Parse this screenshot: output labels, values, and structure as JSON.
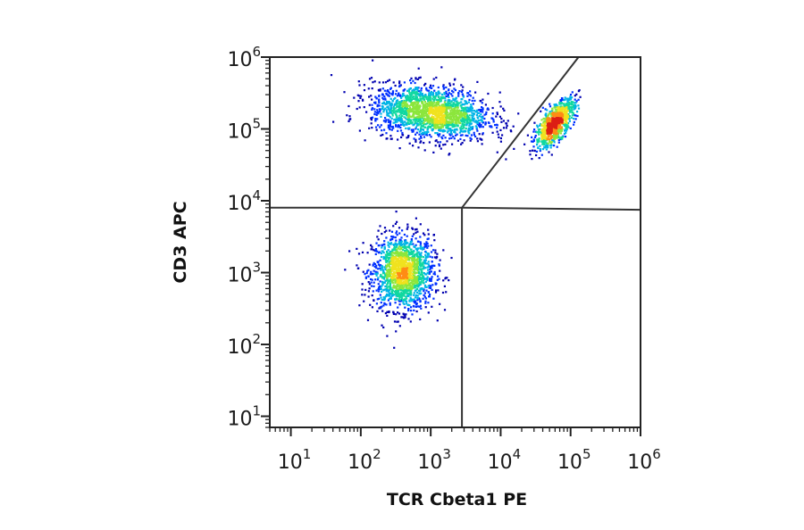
{
  "chart_data": {
    "type": "scatter",
    "style": "flow-cytometry density dot plot (pseudocolor)",
    "xlabel": "TCR Cbeta1 PE",
    "ylabel": "CD3 APC",
    "x_scale": "log",
    "y_scale": "log",
    "xlim": [
      5,
      1000000
    ],
    "ylim": [
      7,
      1000000
    ],
    "x_ticks": [
      {
        "value": 10,
        "base": "10",
        "exp": "1"
      },
      {
        "value": 100,
        "base": "10",
        "exp": "2"
      },
      {
        "value": 1000,
        "base": "10",
        "exp": "3"
      },
      {
        "value": 10000,
        "base": "10",
        "exp": "4"
      },
      {
        "value": 100000,
        "base": "10",
        "exp": "5"
      },
      {
        "value": 1000000,
        "base": "10",
        "exp": "6"
      }
    ],
    "y_ticks": [
      {
        "value": 10,
        "base": "10",
        "exp": "1"
      },
      {
        "value": 100,
        "base": "10",
        "exp": "2"
      },
      {
        "value": 1000,
        "base": "10",
        "exp": "3"
      },
      {
        "value": 10000,
        "base": "10",
        "exp": "4"
      },
      {
        "value": 100000,
        "base": "10",
        "exp": "5"
      },
      {
        "value": 1000000,
        "base": "10",
        "exp": "6"
      }
    ],
    "grid": false,
    "density_colormap": [
      "#0000b0",
      "#0030ff",
      "#00b4e6",
      "#10d8a0",
      "#8ce63c",
      "#f0e21e",
      "#ff8c14",
      "#dc1e14"
    ],
    "populations": [
      {
        "center": [
          400,
          1000
        ],
        "log_spread": [
          0.22,
          0.26
        ],
        "tilt": 0.0,
        "events": 1600
      },
      {
        "center": [
          1000,
          170000
        ],
        "log_spread": [
          0.42,
          0.18
        ],
        "tilt": -0.1,
        "events": 1900
      },
      {
        "center": [
          60000,
          120000
        ],
        "log_spread": [
          0.14,
          0.12
        ],
        "tilt": 0.85,
        "events": 900
      }
    ],
    "gates": [
      {
        "points": [
          [
            5,
            8000
          ],
          [
            2800,
            8000
          ],
          [
            1000000,
            7500
          ]
        ]
      },
      {
        "points": [
          [
            2800,
            7
          ],
          [
            2800,
            8000
          ]
        ]
      },
      {
        "points": [
          [
            2800,
            8000
          ],
          [
            130000,
            1000000
          ]
        ]
      }
    ]
  }
}
